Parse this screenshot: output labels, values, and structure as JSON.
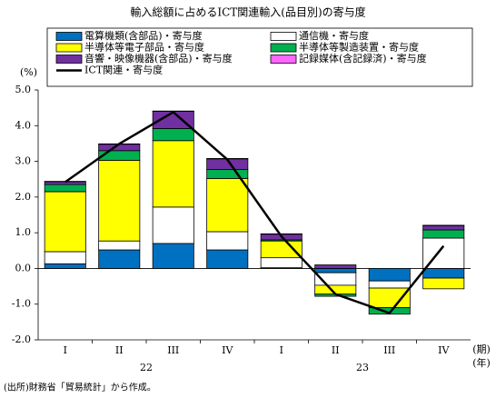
{
  "chart_data": {
    "type": "bar",
    "stacked": true,
    "title": "輸入総額に占めるICT関連輸入(品目別)の寄与度",
    "ylabel": "(%)",
    "period_label": "(期)",
    "year_label": "(年)",
    "source": "(出所)財務省「貿易統計」から作成。",
    "categories": [
      "I",
      "II",
      "III",
      "IV",
      "I",
      "II",
      "III",
      "IV"
    ],
    "year_groups": [
      "22",
      "23"
    ],
    "ylim": [
      -2.0,
      5.0
    ],
    "yticks": [
      {
        "value": 5.0,
        "label": "5.0"
      },
      {
        "value": 4.0,
        "label": "4.0"
      },
      {
        "value": 3.0,
        "label": "3.0"
      },
      {
        "value": 2.0,
        "label": "2.0"
      },
      {
        "value": 1.0,
        "label": "1.0"
      },
      {
        "value": 0.0,
        "label": "0.0"
      },
      {
        "value": -1.0,
        "label": "-1.0"
      },
      {
        "value": -2.0,
        "label": "-2.0"
      }
    ],
    "series": [
      {
        "name": "電算機類(含部品)・寄与度",
        "color": "#0070c0",
        "values": [
          0.13,
          0.52,
          0.7,
          0.52,
          0.02,
          -0.12,
          -0.35,
          -0.27
        ]
      },
      {
        "name": "通信機・寄与度",
        "color": "#ffffff",
        "values": [
          0.34,
          0.25,
          1.02,
          0.51,
          0.28,
          -0.35,
          -0.2,
          0.85
        ]
      },
      {
        "name": "半導体等電子部品・寄与度",
        "color": "#ffff00",
        "values": [
          1.68,
          2.26,
          1.86,
          1.49,
          0.47,
          -0.25,
          -0.55,
          -0.3
        ]
      },
      {
        "name": "半導体等製造装置・寄与度",
        "color": "#00b050",
        "values": [
          0.2,
          0.27,
          0.34,
          0.25,
          0.03,
          -0.06,
          -0.18,
          0.23
        ]
      },
      {
        "name": "音響・映像機器(含部品)・寄与度",
        "color": "#7030a0",
        "values": [
          0.08,
          0.18,
          0.48,
          0.3,
          0.16,
          0.1,
          0.0,
          0.12
        ]
      },
      {
        "name": "記録媒体(含記録済)・寄与度",
        "color": "#ff66ff",
        "values": [
          0.01,
          0.01,
          0.01,
          0.01,
          0.01,
          0.0,
          0.0,
          0.01
        ]
      },
      {
        "name": "ICT関連・寄与度",
        "type": "line",
        "color": "#000000",
        "values": [
          2.42,
          3.49,
          4.38,
          3.05,
          0.9,
          -0.72,
          -1.25,
          0.63
        ]
      }
    ]
  }
}
